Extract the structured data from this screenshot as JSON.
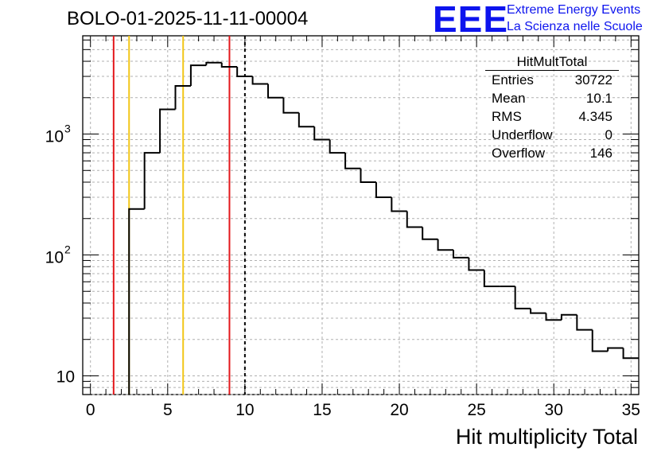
{
  "chart_data": {
    "type": "histogram",
    "title": "BOLO-01-2025-11-11-00004",
    "xlabel": "Hit multiplicity Total",
    "ylabel": "",
    "y_scale": "log",
    "xlim": [
      -0.5,
      35.5
    ],
    "ylim": [
      7,
      6500
    ],
    "x_ticks": [
      "0",
      "5",
      "10",
      "15",
      "20",
      "25",
      "30",
      "35"
    ],
    "y_ticks": [
      {
        "base": "10",
        "exp": "",
        "value": 10
      },
      {
        "base": "10",
        "exp": "2",
        "value": 100
      },
      {
        "base": "10",
        "exp": "3",
        "value": 1000
      }
    ],
    "bin_edges": [
      2.5,
      3.5,
      4.5,
      5.5,
      6.5,
      7.5,
      8.5,
      9.5,
      10.5,
      11.5,
      12.5,
      13.5,
      14.5,
      15.5,
      16.5,
      17.5,
      18.5,
      19.5,
      20.5,
      21.5,
      22.5,
      23.5,
      24.5,
      25.5,
      26.5,
      27.5,
      28.5,
      29.5,
      30.5,
      31.5,
      32.5,
      33.5,
      34.5,
      35.5
    ],
    "values": [
      240,
      700,
      1600,
      2500,
      3700,
      3900,
      3600,
      3000,
      2600,
      2000,
      1500,
      1150,
      900,
      700,
      520,
      400,
      300,
      230,
      170,
      135,
      110,
      95,
      75,
      55,
      55,
      36,
      33,
      29,
      32,
      24,
      16,
      17,
      14
    ],
    "vertical_lines": [
      {
        "x": 1.5,
        "color": "#e3171b",
        "style": "solid"
      },
      {
        "x": 2.5,
        "color": "#f2c618",
        "style": "solid"
      },
      {
        "x": 6.0,
        "color": "#f2c618",
        "style": "solid"
      },
      {
        "x": 9.0,
        "color": "#e3171b",
        "style": "solid"
      },
      {
        "x": 10.0,
        "color": "#000000",
        "style": "dashed"
      }
    ],
    "grid": true,
    "legend": "none"
  },
  "stats_box": {
    "title": "HitMultTotal",
    "rows": [
      {
        "label": "Entries",
        "value": "30722"
      },
      {
        "label": "Mean",
        "value": "10.1"
      },
      {
        "label": "RMS",
        "value": "4.345"
      },
      {
        "label": "Underflow",
        "value": "0"
      },
      {
        "label": "Overflow",
        "value": "146"
      }
    ]
  },
  "logo": {
    "text": "EEE",
    "line1": "Extreme Energy Events",
    "line2": "La Scienza nelle Scuole",
    "color": "#0d14ee"
  }
}
